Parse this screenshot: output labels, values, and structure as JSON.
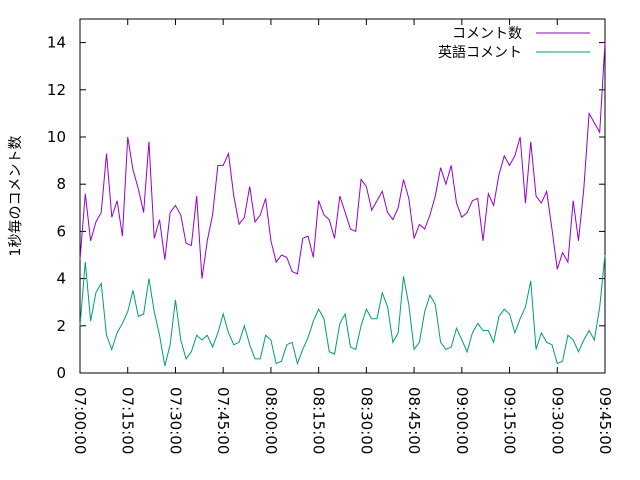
{
  "chart_data": {
    "type": "line",
    "title": "",
    "xlabel": "",
    "ylabel": "1秒毎のコメント数",
    "ylim": [
      0,
      15
    ],
    "yticks": [
      0,
      2,
      4,
      6,
      8,
      10,
      12,
      14
    ],
    "xticks": [
      "07:00:00",
      "07:15:00",
      "07:30:00",
      "07:45:00",
      "08:00:00",
      "08:15:00",
      "08:30:00",
      "08:45:00",
      "09:00:00",
      "09:15:00",
      "09:30:00",
      "09:45:00"
    ],
    "xlim": [
      "07:00:00",
      "09:45:00"
    ],
    "legend_position": "top-right",
    "grid": false,
    "series": [
      {
        "name": "コメント数",
        "color": "#9400d3",
        "values": [
          4.8,
          7.6,
          5.6,
          6.4,
          6.8,
          9.3,
          6.6,
          7.3,
          5.8,
          10.0,
          8.6,
          7.8,
          6.8,
          9.8,
          5.7,
          6.5,
          4.8,
          6.8,
          7.1,
          6.7,
          5.5,
          5.4,
          7.5,
          4.0,
          5.6,
          6.7,
          8.8,
          8.8,
          9.3,
          7.5,
          6.3,
          6.6,
          7.9,
          6.4,
          6.7,
          7.4,
          5.6,
          4.7,
          5.0,
          4.9,
          4.3,
          4.2,
          5.7,
          5.8,
          4.9,
          7.3,
          6.7,
          6.5,
          5.7,
          7.5,
          6.8,
          6.1,
          6.0,
          8.2,
          7.9,
          6.9,
          7.3,
          7.7,
          6.8,
          6.5,
          7.0,
          8.2,
          7.4,
          5.7,
          6.3,
          6.1,
          6.7,
          7.5,
          8.7,
          8.0,
          8.8,
          7.2,
          6.6,
          6.8,
          7.3,
          7.4,
          5.6,
          7.6,
          7.1,
          8.4,
          9.2,
          8.8,
          9.2,
          10.0,
          7.2,
          9.8,
          7.5,
          7.2,
          7.7,
          6.1,
          4.4,
          5.1,
          4.7,
          7.3,
          5.6,
          7.8,
          11.0,
          10.6,
          10.2,
          14.0
        ]
      },
      {
        "name": "英語コメント",
        "color": "#009e73",
        "values": [
          2.0,
          4.7,
          2.2,
          3.4,
          3.8,
          1.6,
          1.0,
          1.7,
          2.1,
          2.6,
          3.5,
          2.4,
          2.5,
          4.0,
          2.6,
          1.6,
          0.3,
          1.2,
          3.1,
          1.4,
          0.6,
          0.9,
          1.6,
          1.4,
          1.6,
          1.1,
          1.7,
          2.5,
          1.7,
          1.2,
          1.3,
          2.0,
          1.2,
          0.6,
          0.6,
          1.6,
          1.4,
          0.4,
          0.5,
          1.2,
          1.3,
          0.4,
          1.0,
          1.5,
          2.2,
          2.7,
          2.3,
          0.9,
          0.8,
          2.1,
          2.5,
          1.1,
          1.0,
          2.0,
          2.7,
          2.3,
          2.3,
          3.4,
          2.8,
          1.3,
          1.7,
          4.1,
          2.9,
          1.0,
          1.3,
          2.6,
          3.3,
          2.9,
          1.3,
          1.0,
          1.1,
          1.9,
          1.4,
          0.9,
          1.7,
          2.1,
          1.8,
          1.8,
          1.3,
          2.4,
          2.7,
          2.5,
          1.7,
          2.3,
          2.8,
          3.9,
          1.0,
          1.7,
          1.3,
          1.2,
          0.4,
          0.5,
          1.6,
          1.4,
          0.9,
          1.4,
          1.8,
          1.4,
          2.8,
          5.0
        ]
      }
    ]
  }
}
